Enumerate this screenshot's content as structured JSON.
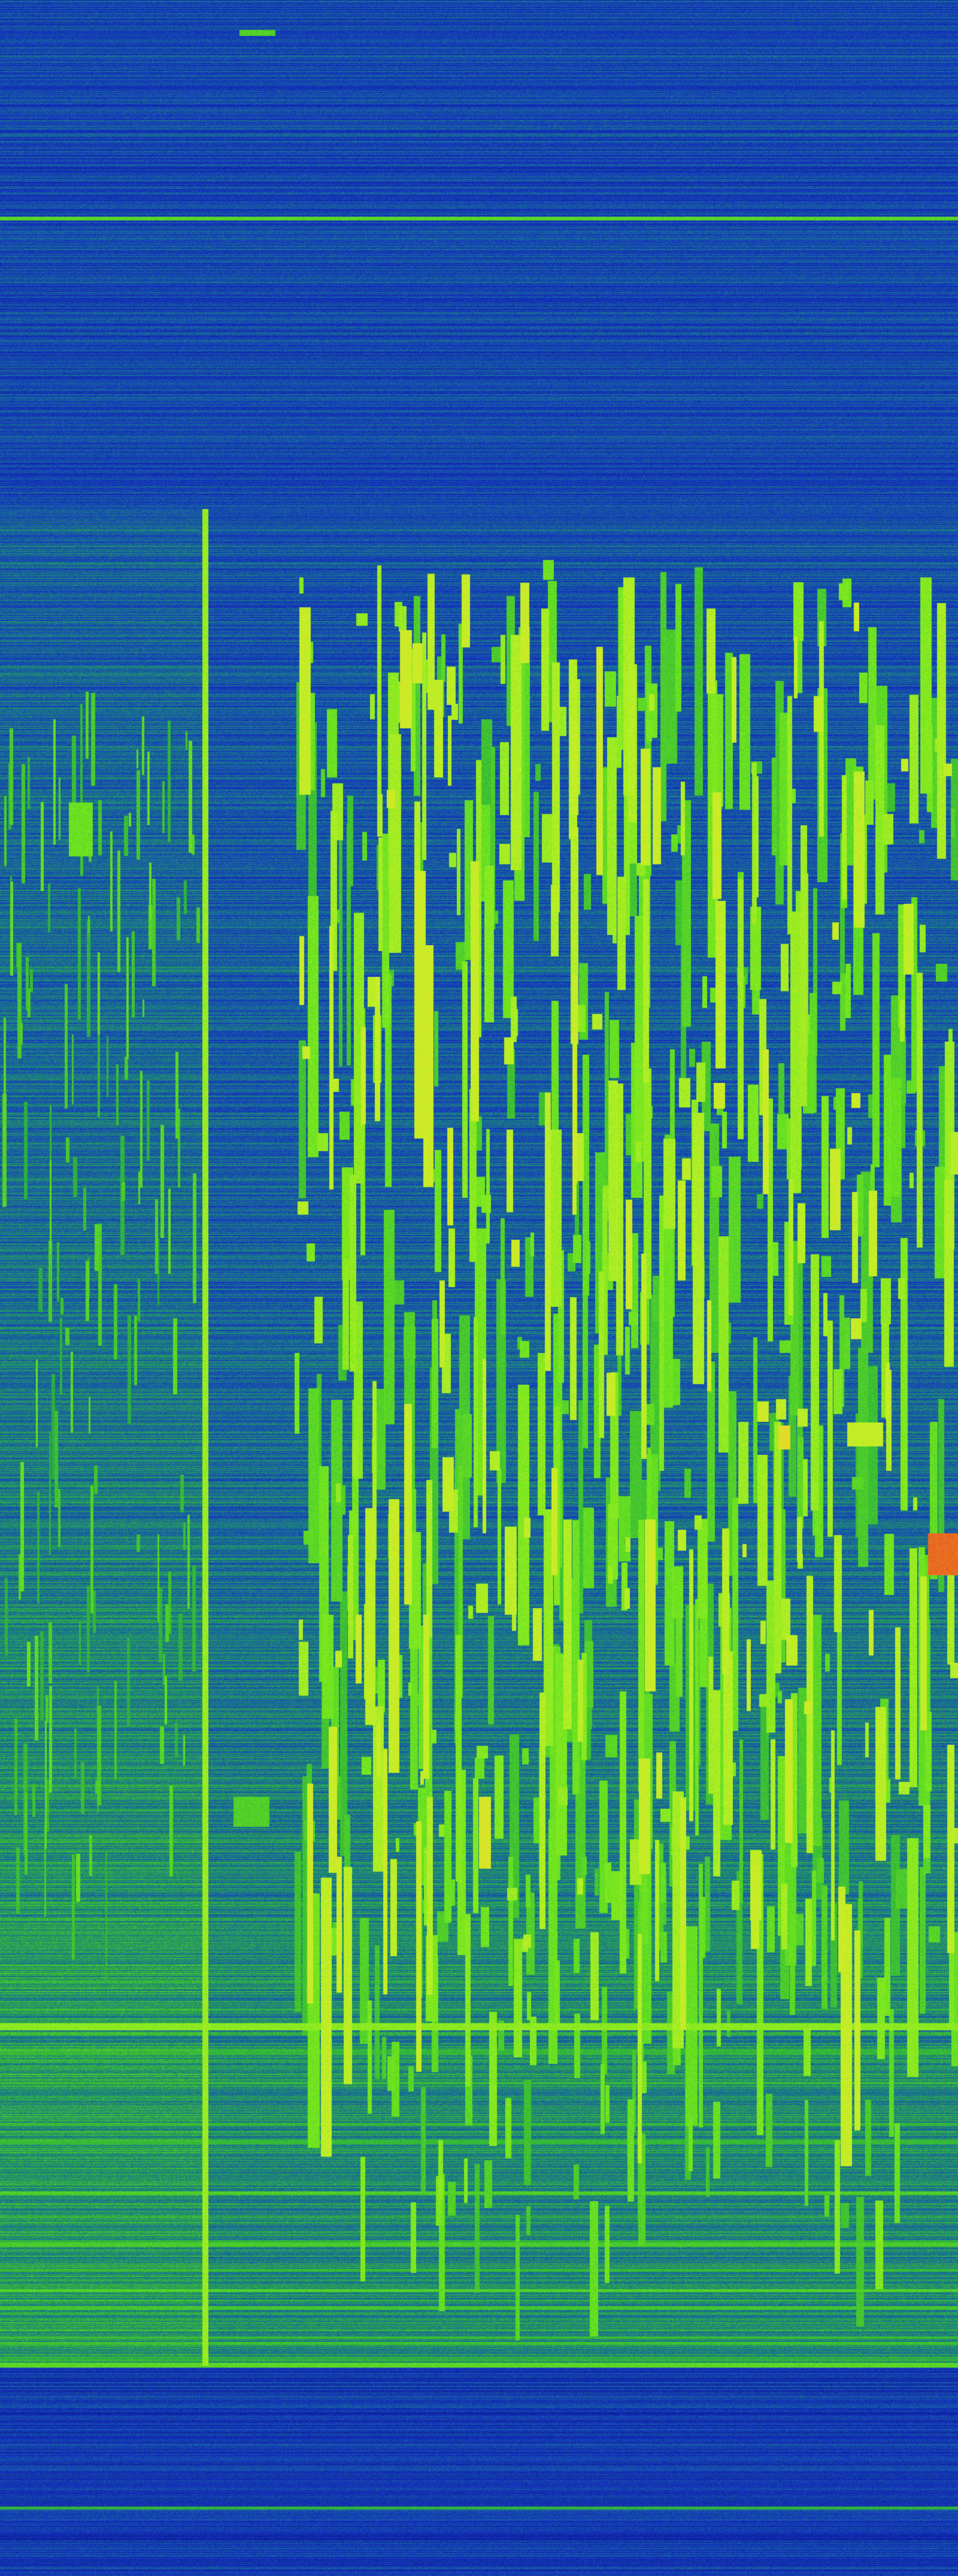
{
  "image": {
    "kind": "spectrogram-waterfall",
    "colormap": [
      "#0a1780",
      "#1433c4",
      "#1a7a8a",
      "#2fb43a",
      "#6ee61e",
      "#c8f028",
      "#f0d228",
      "#e6461e"
    ]
  }
}
